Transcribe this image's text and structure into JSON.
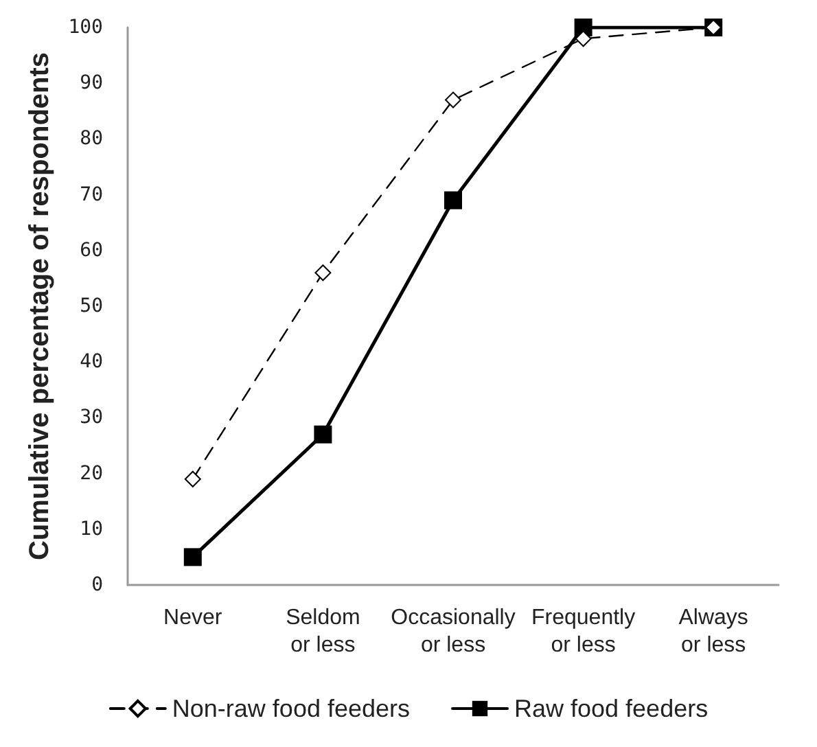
{
  "chart_data": {
    "type": "line",
    "ylabel": "Cumulative percentage of respondents",
    "categories": [
      "Never",
      "Seldom\nor less",
      "Occasionally\nor less",
      "Frequently\nor less",
      "Always\nor less"
    ],
    "series": [
      {
        "name": "Non-raw food feeders",
        "color": "#000000",
        "marker": "diamond",
        "line_style": "dashed",
        "values": [
          19,
          56,
          87,
          98,
          100
        ]
      },
      {
        "name": "Raw food feeders",
        "color": "#000000",
        "marker": "square",
        "line_style": "solid",
        "values": [
          5,
          27,
          69,
          100,
          100
        ]
      }
    ],
    "ylim": [
      0,
      100
    ],
    "yticks": [
      0,
      10,
      20,
      30,
      40,
      50,
      60,
      70,
      80,
      90,
      100
    ],
    "grid": false,
    "legend": "bottom"
  }
}
